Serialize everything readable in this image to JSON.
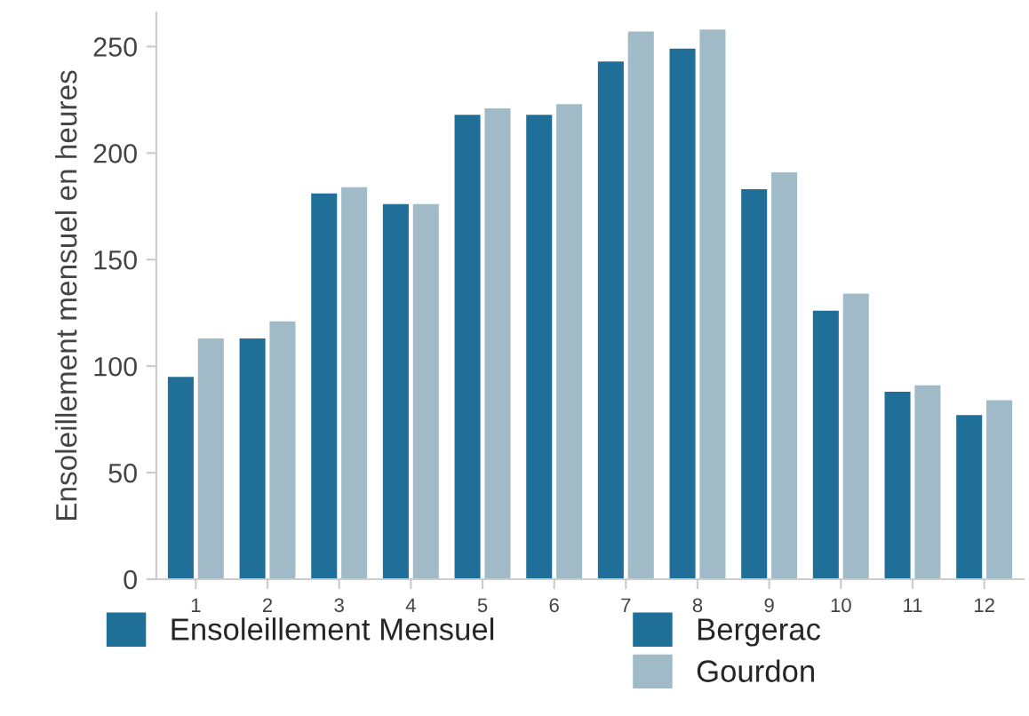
{
  "chart_data": {
    "type": "bar",
    "ylabel": "Ensoleillement mensuel en heures",
    "legend_title": "Ensoleillement Mensuel",
    "categories": [
      "1",
      "2",
      "3",
      "4",
      "5",
      "6",
      "7",
      "8",
      "9",
      "10",
      "11",
      "12"
    ],
    "series": [
      {
        "name": "Bergerac",
        "color": "#1f6f98",
        "values": [
          95,
          113,
          181,
          176,
          218,
          218,
          243,
          249,
          183,
          126,
          88,
          77
        ]
      },
      {
        "name": "Gourdon",
        "color": "#a0bac8",
        "values": [
          113,
          121,
          184,
          176,
          221,
          223,
          257,
          258,
          191,
          134,
          91,
          84
        ]
      }
    ],
    "ylim": [
      0,
      266
    ],
    "yticks": [
      0,
      50,
      100,
      150,
      200,
      250
    ],
    "grid": false,
    "legend": "bottom"
  }
}
